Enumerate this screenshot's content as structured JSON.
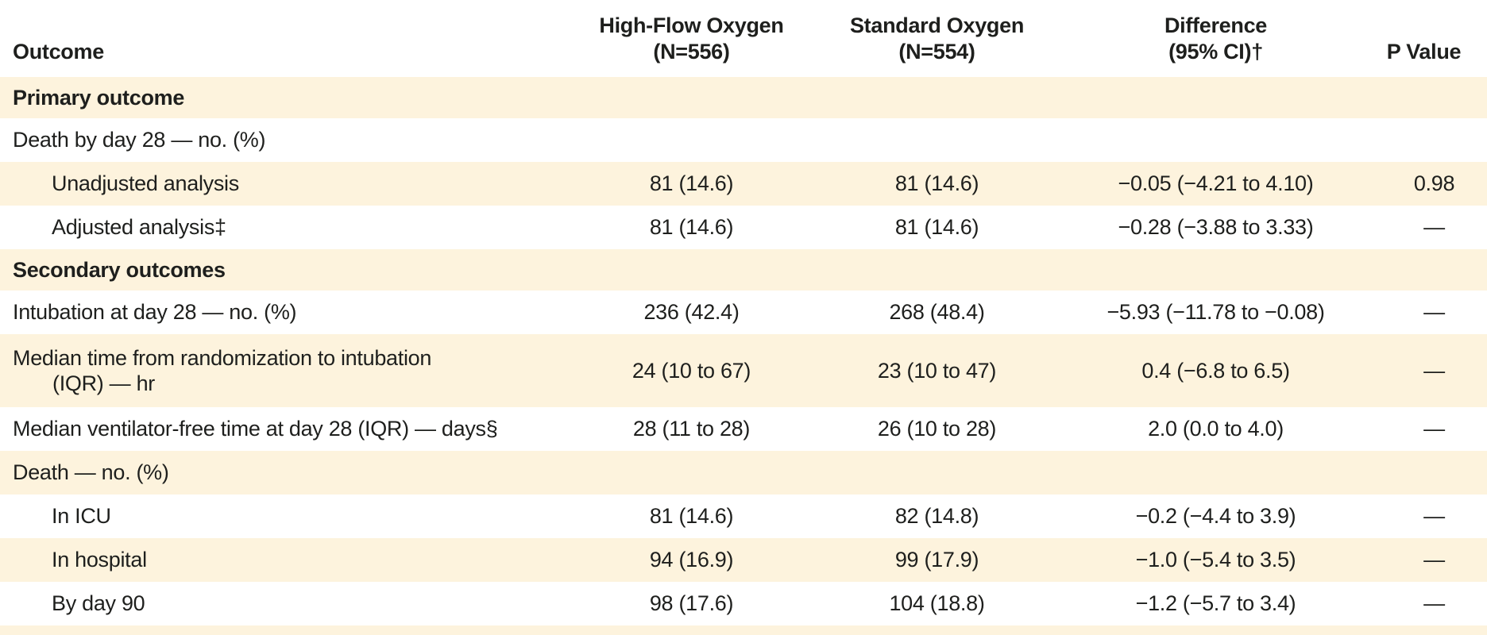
{
  "theme": {
    "row_highlight_color": "#fdf3dd",
    "row_plain_color": "#ffffff",
    "text_color": "#1e1f1d"
  },
  "header": {
    "outcome": "Outcome",
    "high_flow": {
      "line1": "High-Flow Oxygen",
      "line2": "(N=556)"
    },
    "standard": {
      "line1": "Standard Oxygen",
      "line2": "(N=554)"
    },
    "difference": {
      "line1": "Difference",
      "line2": "(95% CI)†"
    },
    "p_value": "P Value"
  },
  "rows": [
    {
      "type": "section",
      "label": "Primary outcome"
    },
    {
      "type": "group",
      "label": "Death by day 28 — no. (%)"
    },
    {
      "type": "sub",
      "label": "Unadjusted analysis",
      "high_flow": "81 (14.6)",
      "standard": "81 (14.6)",
      "difference": "−0.05 (−4.21 to 4.10)",
      "p_value": "0.98"
    },
    {
      "type": "sub",
      "label": "Adjusted analysis‡",
      "high_flow": "81 (14.6)",
      "standard": "81 (14.6)",
      "difference": "−0.28 (−3.88 to 3.33)",
      "p_value": "—"
    },
    {
      "type": "section",
      "label": "Secondary outcomes"
    },
    {
      "type": "data",
      "label": "Intubation at day 28 — no. (%)",
      "high_flow": "236 (42.4)",
      "standard": "268 (48.4)",
      "difference": "−5.93 (−11.78 to −0.08)",
      "p_value": "—"
    },
    {
      "type": "data-two-line",
      "label": "Median time from randomization to intubation",
      "label2": "(IQR) — hr",
      "high_flow": "24 (10 to 67)",
      "standard": "23 (10 to 47)",
      "difference": "0.4 (−6.8 to 6.5)",
      "p_value": "—"
    },
    {
      "type": "data",
      "label": "Median ventilator-free time at day 28 (IQR) — days§",
      "high_flow": "28 (11 to 28)",
      "standard": "26 (10 to 28)",
      "difference": "2.0 (0.0 to 4.0)",
      "p_value": "—"
    },
    {
      "type": "group",
      "label": "Death — no. (%)"
    },
    {
      "type": "sub",
      "label": "In ICU",
      "high_flow": "81 (14.6)",
      "standard": "82 (14.8)",
      "difference": "−0.2 (−4.4 to 3.9)",
      "p_value": "—"
    },
    {
      "type": "sub",
      "label": "In hospital",
      "high_flow": "94 (16.9)",
      "standard": "99 (17.9)",
      "difference": "−1.0 (−5.4 to 3.5)",
      "p_value": "—"
    },
    {
      "type": "sub",
      "label": "By day 90",
      "high_flow": "98 (17.6)",
      "standard": "104 (18.8)",
      "difference": "−1.2 (−5.7 to 3.4)",
      "p_value": "—"
    }
  ]
}
